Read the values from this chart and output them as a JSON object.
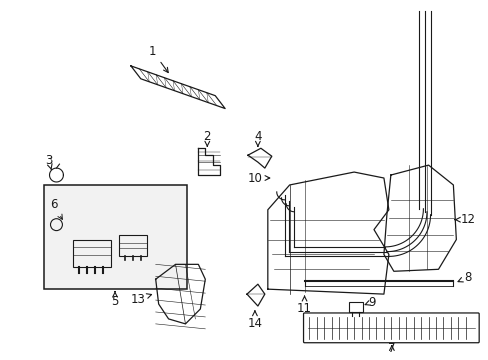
{
  "bg_color": "#ffffff",
  "fig_width": 4.89,
  "fig_height": 3.6,
  "dpi": 100,
  "line_color": "#1a1a1a",
  "text_color": "#1a1a1a",
  "font_size": 7.5,
  "label_font_size": 8.5
}
